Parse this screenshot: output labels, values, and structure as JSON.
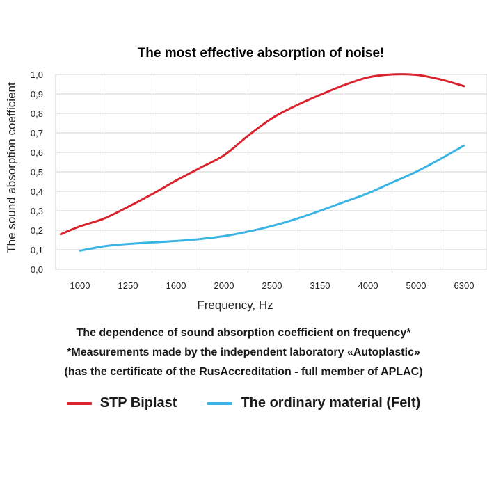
{
  "chart_data": {
    "type": "line",
    "title": "The most effective absorption of noise!",
    "xlabel": "Frequency, Hz",
    "ylabel": "The sound absorption coefficient",
    "categories": [
      "1000",
      "1250",
      "1600",
      "2000",
      "2500",
      "3150",
      "4000",
      "5000",
      "6300"
    ],
    "yticks": [
      "0,0",
      "0,1",
      "0,2",
      "0,3",
      "0,4",
      "0,5",
      "0,6",
      "0,7",
      "0,8",
      "0,9",
      "1,0"
    ],
    "ylim": [
      0,
      1.0
    ],
    "grid": true,
    "legend_position": "bottom",
    "series": [
      {
        "name": "STP Biplast",
        "color": "#d9232e",
        "x": [
          0.6,
          1,
          1.5,
          2,
          2.5,
          3,
          3.5,
          4,
          4.5,
          5,
          5.5,
          6,
          6.5,
          7,
          7.5,
          8,
          8.5,
          9
        ],
        "values": [
          0.18,
          0.22,
          0.26,
          0.32,
          0.385,
          0.455,
          0.52,
          0.585,
          0.685,
          0.775,
          0.84,
          0.895,
          0.945,
          0.985,
          1.0,
          0.998,
          0.975,
          0.94
        ]
      },
      {
        "name": "The ordinary material (Felt)",
        "color": "#3ab4e4",
        "x": [
          1,
          1.5,
          2,
          2.5,
          3,
          3.5,
          4,
          4.5,
          5,
          5.5,
          6,
          6.5,
          7,
          7.5,
          8,
          8.5,
          9
        ],
        "values": [
          0.095,
          0.118,
          0.13,
          0.138,
          0.145,
          0.155,
          0.17,
          0.193,
          0.222,
          0.258,
          0.3,
          0.345,
          0.39,
          0.445,
          0.5,
          0.565,
          0.635
        ]
      }
    ]
  },
  "caption": {
    "line1": "The dependence of sound absorption coefficient on frequency*",
    "line2": "*Measurements made by the independent laboratory «Autoplastic»",
    "line3": "(has the certificate of the RusAccreditation - full member of APLAC)"
  }
}
